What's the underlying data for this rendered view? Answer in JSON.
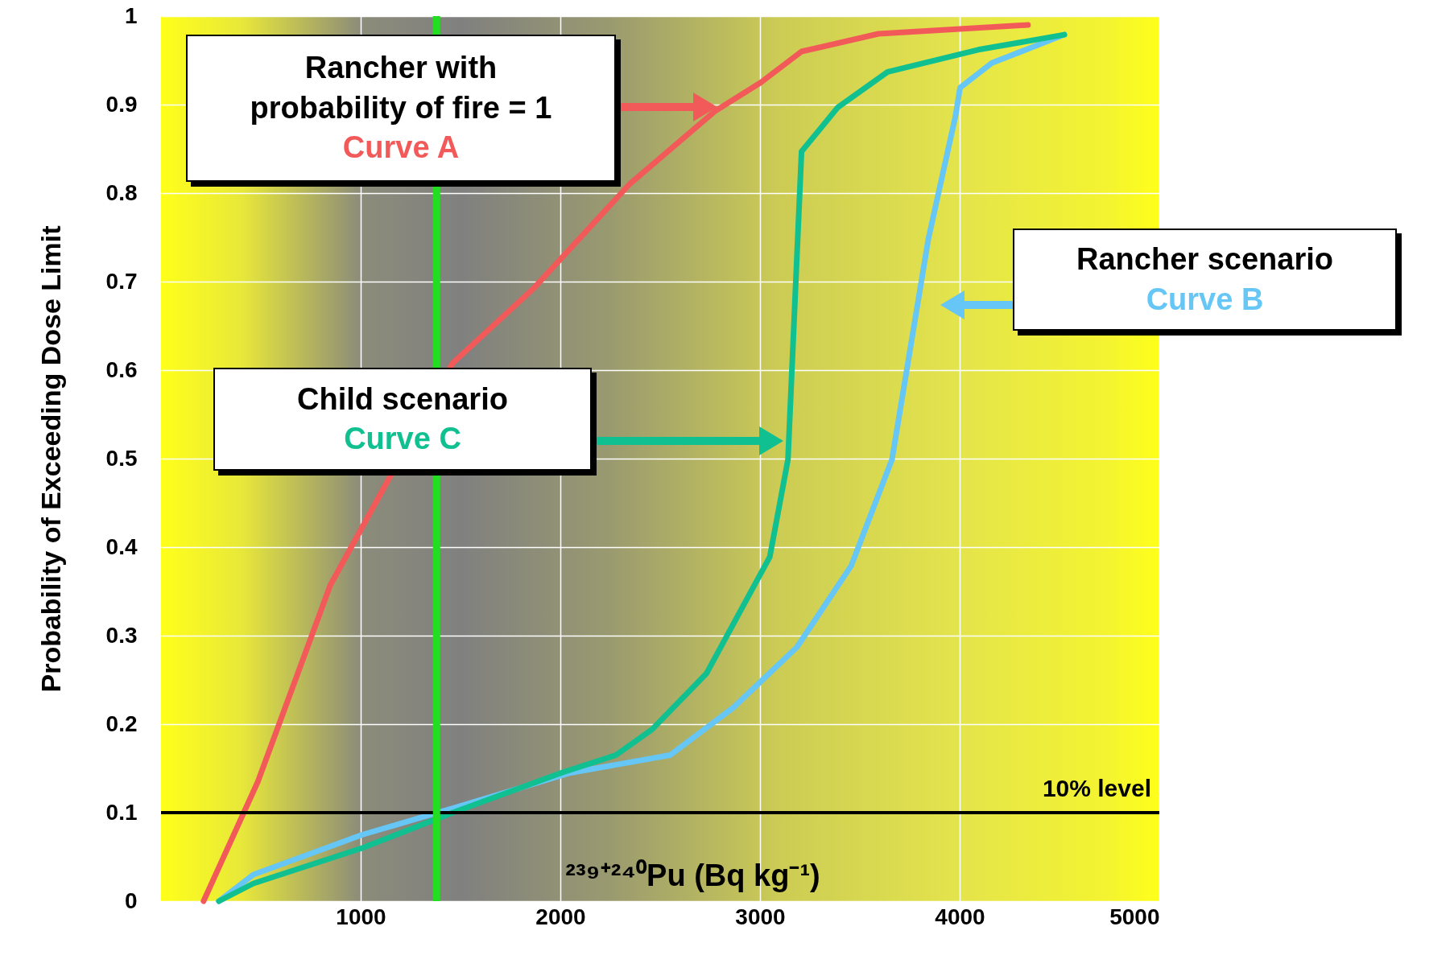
{
  "chart_data": {
    "type": "line",
    "xlabel": "²³⁹⁺²⁴⁰Pu (Bq kg⁻¹)",
    "ylabel": "Probability of Exceeding Dose Limit",
    "xlim": [
      0,
      5000
    ],
    "xticks": [
      1000,
      2000,
      3000,
      4000,
      5000
    ],
    "ylim": [
      0,
      1
    ],
    "yticks": [
      0,
      0.1,
      0.2,
      0.3,
      0.4,
      0.5,
      0.6,
      0.7,
      0.8,
      0.9,
      1
    ],
    "grid": true,
    "line_style": "solid",
    "annotations": [
      "Rancher with probability of fire = 1",
      "Rancher scenario",
      "Child scenario"
    ],
    "ref_lines": [
      {
        "axis": "y",
        "value": 0.1,
        "label": "10% level",
        "color": "#000000"
      },
      {
        "axis": "x",
        "value": 1380,
        "color": "#22dd22"
      }
    ],
    "series": [
      {
        "name": "Curve A",
        "color": "#f25a5a",
        "x": [
          213,
          485,
          848,
          1143,
          1461,
          1869,
          2346,
          2777,
          3004,
          3208,
          3593,
          4342
        ],
        "values": [
          0,
          0.135,
          0.357,
          0.478,
          0.608,
          0.693,
          0.81,
          0.893,
          0.925,
          0.96,
          0.98,
          0.99
        ]
      },
      {
        "name": "Curve B",
        "color": "#66c6f5",
        "x": [
          290,
          463,
          1007,
          1461,
          2051,
          2550,
          2868,
          3185,
          3457,
          3661,
          3843,
          3979,
          4002,
          4161,
          4524
        ],
        "values": [
          0,
          0.03,
          0.075,
          0.105,
          0.145,
          0.165,
          0.219,
          0.287,
          0.379,
          0.499,
          0.748,
          0.887,
          0.919,
          0.947,
          0.979
        ]
      },
      {
        "name": "Curve C",
        "color": "#10c090",
        "x": [
          290,
          463,
          1007,
          1461,
          2005,
          2278,
          2459,
          2731,
          3049,
          3140,
          3208,
          3390,
          3639,
          4093,
          4524
        ],
        "values": [
          0,
          0.02,
          0.06,
          0.1,
          0.145,
          0.165,
          0.194,
          0.257,
          0.389,
          0.499,
          0.847,
          0.897,
          0.937,
          0.962,
          0.979
        ]
      }
    ]
  }
}
